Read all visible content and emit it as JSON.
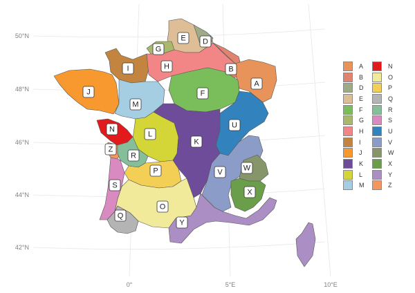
{
  "map": {
    "lat_ticks": [
      "50°N",
      "48°N",
      "46°N",
      "44°N",
      "42°N"
    ],
    "lon_ticks": [
      "0°",
      "5°E",
      "10°E"
    ]
  },
  "regions": [
    {
      "code": "A",
      "color": "#E8935A"
    },
    {
      "code": "B",
      "color": "#E0836F"
    },
    {
      "code": "D",
      "color": "#9EAA88"
    },
    {
      "code": "E",
      "color": "#DDBE97"
    },
    {
      "code": "F",
      "color": "#79BE5A"
    },
    {
      "code": "G",
      "color": "#A9B86A"
    },
    {
      "code": "H",
      "color": "#F28585"
    },
    {
      "code": "I",
      "color": "#C3843F"
    },
    {
      "code": "J",
      "color": "#F7992F"
    },
    {
      "code": "K",
      "color": "#6E4C9A"
    },
    {
      "code": "L",
      "color": "#D4D638"
    },
    {
      "code": "M",
      "color": "#A6CEE3"
    },
    {
      "code": "N",
      "color": "#E31A1C"
    },
    {
      "code": "O",
      "color": "#F1EA9B"
    },
    {
      "code": "P",
      "color": "#F4CF55"
    },
    {
      "code": "Q",
      "color": "#B4B4B4"
    },
    {
      "code": "R",
      "color": "#85BF9A"
    },
    {
      "code": "S",
      "color": "#D98AC0"
    },
    {
      "code": "U",
      "color": "#3282BE"
    },
    {
      "code": "V",
      "color": "#8C9CC9"
    },
    {
      "code": "W",
      "color": "#86966A"
    },
    {
      "code": "X",
      "color": "#6A9E4A"
    },
    {
      "code": "Y",
      "color": "#AA8EC4"
    },
    {
      "code": "Z",
      "color": "#F4975F"
    }
  ]
}
